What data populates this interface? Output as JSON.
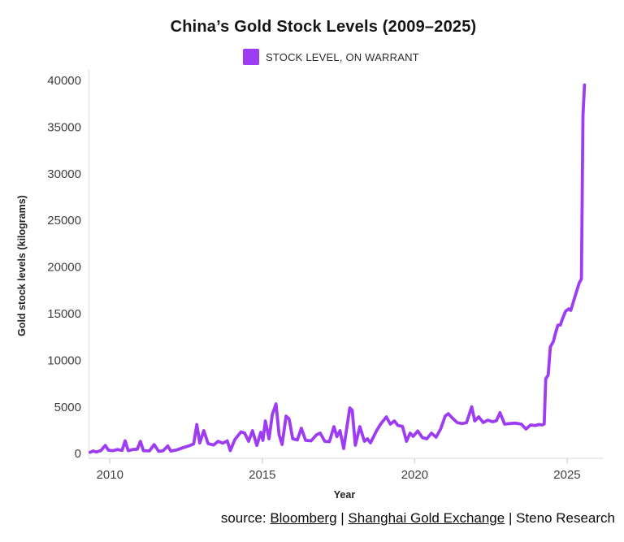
{
  "header": {
    "title": "China’s Gold Stock Levels (2009–2025)"
  },
  "legend": {
    "label": "STOCK LEVEL, ON WARRANT",
    "swatch_color": "#9d3cf2"
  },
  "axes": {
    "x_label": "Year",
    "y_label": "Gold stock levels (kilograms)"
  },
  "footer": {
    "prefix": "source: ",
    "link1": "Bloomberg",
    "sep1": " | ",
    "link2": "Shanghai Gold Exchange",
    "sep2": " | ",
    "suffix": "Steno Research"
  },
  "chart_data": {
    "type": "line",
    "title": "China’s Gold Stock Levels (2009–2025)",
    "xlabel": "Year",
    "ylabel": "Gold stock levels (kilograms)",
    "x_ticks": [
      2010,
      2015,
      2020,
      2025
    ],
    "y_ticks": [
      0,
      5000,
      10000,
      15000,
      20000,
      25000,
      30000,
      35000,
      40000
    ],
    "xlim": [
      2009.3,
      2026.2
    ],
    "ylim": [
      0,
      40000
    ],
    "grid": false,
    "legend_position": "top-center",
    "line_color": "#9d3cf2",
    "axis_color": "#e8e7e3",
    "tick_label_color": "#3f3f3f",
    "series": [
      {
        "name": "STOCK LEVEL, ON WARRANT",
        "points": [
          [
            2009.35,
            120
          ],
          [
            2009.45,
            260
          ],
          [
            2009.55,
            160
          ],
          [
            2009.7,
            300
          ],
          [
            2009.85,
            850
          ],
          [
            2009.95,
            350
          ],
          [
            2010.1,
            300
          ],
          [
            2010.25,
            420
          ],
          [
            2010.4,
            330
          ],
          [
            2010.5,
            1350
          ],
          [
            2010.6,
            300
          ],
          [
            2010.75,
            420
          ],
          [
            2010.9,
            450
          ],
          [
            2011.0,
            1300
          ],
          [
            2011.1,
            300
          ],
          [
            2011.3,
            270
          ],
          [
            2011.45,
            950
          ],
          [
            2011.6,
            220
          ],
          [
            2011.75,
            300
          ],
          [
            2011.9,
            800
          ],
          [
            2012.0,
            250
          ],
          [
            2012.2,
            380
          ],
          [
            2012.4,
            620
          ],
          [
            2012.6,
            820
          ],
          [
            2012.75,
            1020
          ],
          [
            2012.85,
            3100
          ],
          [
            2012.95,
            1120
          ],
          [
            2013.08,
            2450
          ],
          [
            2013.22,
            1050
          ],
          [
            2013.4,
            900
          ],
          [
            2013.55,
            1300
          ],
          [
            2013.7,
            1100
          ],
          [
            2013.85,
            1350
          ],
          [
            2013.95,
            300
          ],
          [
            2014.1,
            1500
          ],
          [
            2014.3,
            2300
          ],
          [
            2014.42,
            2180
          ],
          [
            2014.55,
            1300
          ],
          [
            2014.68,
            2440
          ],
          [
            2014.82,
            850
          ],
          [
            2014.95,
            2270
          ],
          [
            2015.02,
            1400
          ],
          [
            2015.1,
            3480
          ],
          [
            2015.22,
            1570
          ],
          [
            2015.33,
            4180
          ],
          [
            2015.45,
            5310
          ],
          [
            2015.55,
            2000
          ],
          [
            2015.65,
            960
          ],
          [
            2015.78,
            4000
          ],
          [
            2015.88,
            3700
          ],
          [
            2016.0,
            1570
          ],
          [
            2016.15,
            1450
          ],
          [
            2016.28,
            2700
          ],
          [
            2016.42,
            1400
          ],
          [
            2016.6,
            1350
          ],
          [
            2016.78,
            2000
          ],
          [
            2016.9,
            2180
          ],
          [
            2017.05,
            1300
          ],
          [
            2017.2,
            1250
          ],
          [
            2017.35,
            2870
          ],
          [
            2017.45,
            1800
          ],
          [
            2017.55,
            2440
          ],
          [
            2017.67,
            520
          ],
          [
            2017.87,
            4880
          ],
          [
            2017.95,
            4620
          ],
          [
            2018.05,
            870
          ],
          [
            2018.2,
            2870
          ],
          [
            2018.35,
            1300
          ],
          [
            2018.45,
            1570
          ],
          [
            2018.55,
            1130
          ],
          [
            2018.75,
            2440
          ],
          [
            2018.88,
            3140
          ],
          [
            2019.07,
            3920
          ],
          [
            2019.2,
            3140
          ],
          [
            2019.33,
            3480
          ],
          [
            2019.45,
            3000
          ],
          [
            2019.6,
            2900
          ],
          [
            2019.73,
            1300
          ],
          [
            2019.85,
            2180
          ],
          [
            2019.95,
            1830
          ],
          [
            2020.1,
            2400
          ],
          [
            2020.25,
            1700
          ],
          [
            2020.4,
            1570
          ],
          [
            2020.55,
            2180
          ],
          [
            2020.7,
            1740
          ],
          [
            2020.85,
            2610
          ],
          [
            2021.0,
            4000
          ],
          [
            2021.1,
            4260
          ],
          [
            2021.25,
            3750
          ],
          [
            2021.4,
            3300
          ],
          [
            2021.55,
            3200
          ],
          [
            2021.7,
            3300
          ],
          [
            2021.87,
            5000
          ],
          [
            2021.97,
            3480
          ],
          [
            2022.1,
            3920
          ],
          [
            2022.25,
            3310
          ],
          [
            2022.4,
            3570
          ],
          [
            2022.55,
            3400
          ],
          [
            2022.68,
            3500
          ],
          [
            2022.8,
            4360
          ],
          [
            2022.95,
            3140
          ],
          [
            2023.1,
            3200
          ],
          [
            2023.3,
            3250
          ],
          [
            2023.5,
            3140
          ],
          [
            2023.65,
            2610
          ],
          [
            2023.8,
            3050
          ],
          [
            2023.95,
            3000
          ],
          [
            2024.08,
            3100
          ],
          [
            2024.18,
            3050
          ],
          [
            2024.25,
            3150
          ],
          [
            2024.3,
            8000
          ],
          [
            2024.38,
            8400
          ],
          [
            2024.45,
            11400
          ],
          [
            2024.55,
            12000
          ],
          [
            2024.62,
            12900
          ],
          [
            2024.7,
            13760
          ],
          [
            2024.78,
            13760
          ],
          [
            2024.85,
            14460
          ],
          [
            2024.95,
            15240
          ],
          [
            2025.05,
            15500
          ],
          [
            2025.12,
            15330
          ],
          [
            2025.2,
            16200
          ],
          [
            2025.3,
            17250
          ],
          [
            2025.4,
            18300
          ],
          [
            2025.47,
            18700
          ],
          [
            2025.52,
            36200
          ],
          [
            2025.57,
            39500
          ]
        ]
      }
    ]
  }
}
